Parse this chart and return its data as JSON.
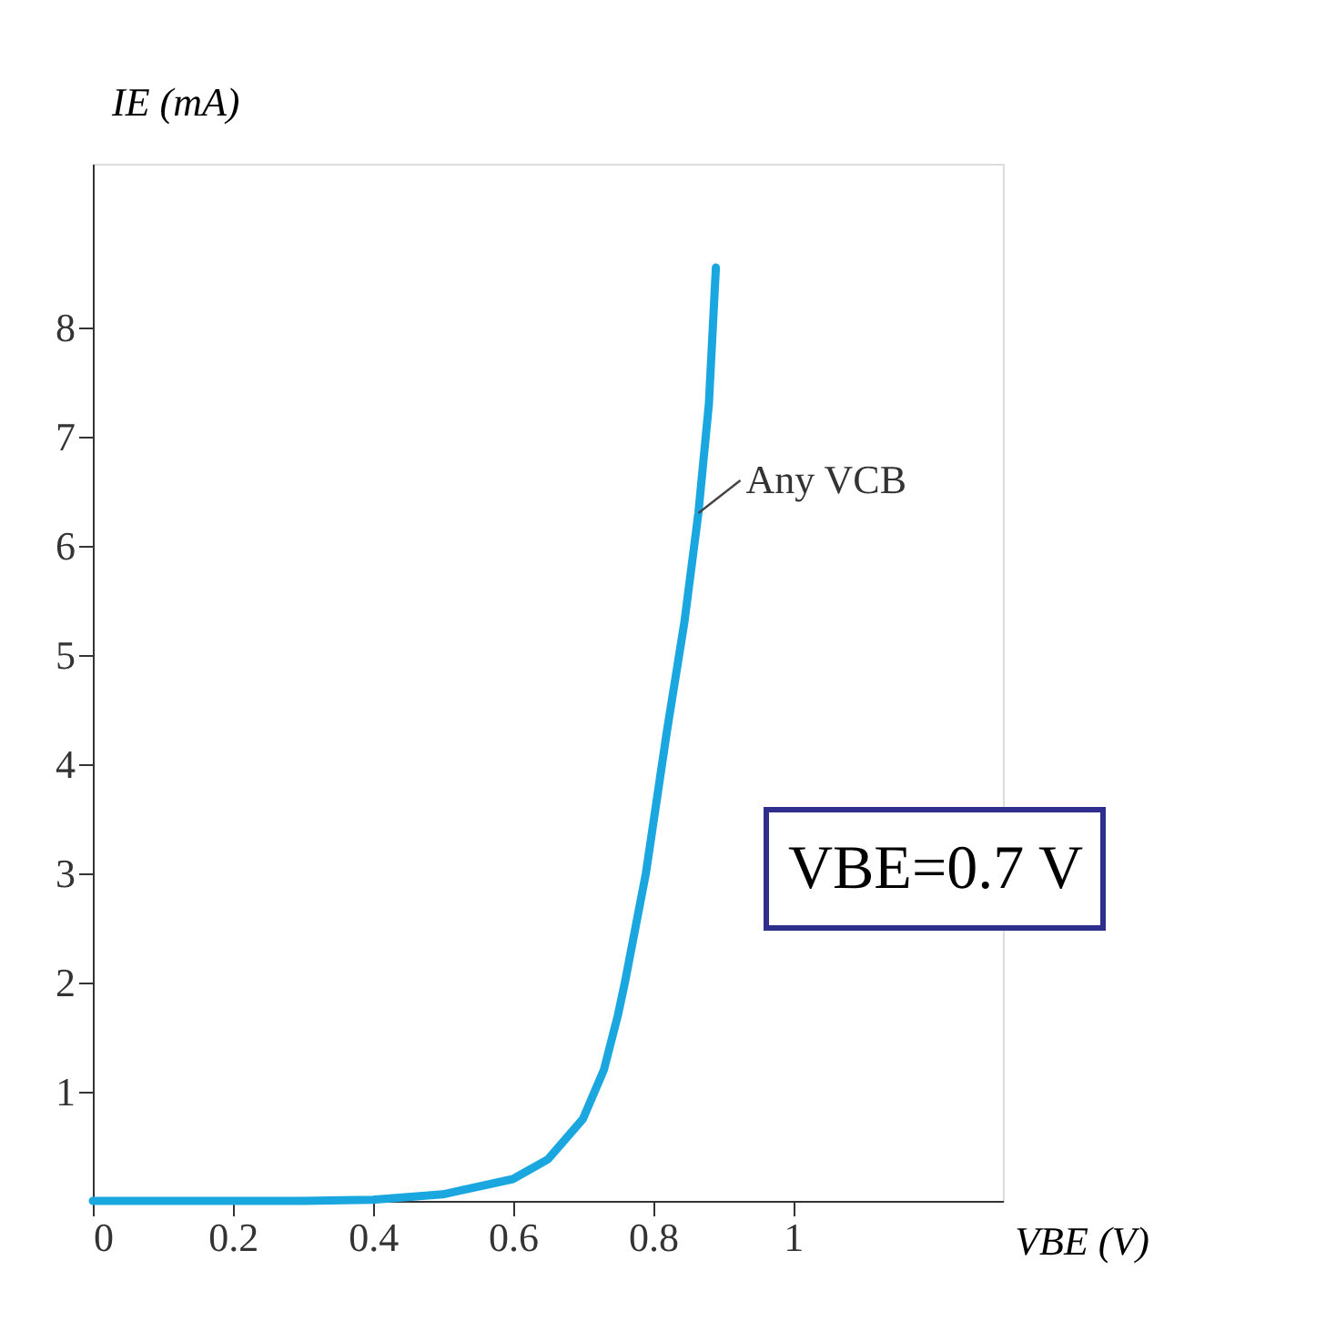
{
  "chart_data": {
    "type": "line",
    "xlabel": "VBE (V)",
    "ylabel": "IE (mA)",
    "x": [
      0,
      0.3,
      0.4,
      0.5,
      0.6,
      0.65,
      0.7,
      0.73,
      0.75,
      0.76,
      0.79,
      0.82,
      0.845,
      0.865,
      0.88,
      0.89
    ],
    "series": [
      {
        "color": "#1aa7e0",
        "values": [
          0,
          0,
          0.01,
          0.06,
          0.2,
          0.38,
          0.75,
          1.2,
          1.7,
          2,
          3,
          4.3,
          5.3,
          6.3,
          7.3,
          8.55
        ]
      }
    ],
    "xlim": [
      0,
      1.3
    ],
    "ylim": [
      0,
      9.5
    ],
    "xticks": [
      0,
      0.2,
      0.4,
      0.6,
      0.8,
      1
    ],
    "yticks": [
      1,
      2,
      3,
      4,
      5,
      6,
      7,
      8
    ],
    "annotations": [
      {
        "text": "Any VCB",
        "x": 0.865,
        "y": 6.3
      },
      "VBE=0.7 V"
    ],
    "grid": false,
    "marker": "none",
    "line_style": "solid"
  }
}
